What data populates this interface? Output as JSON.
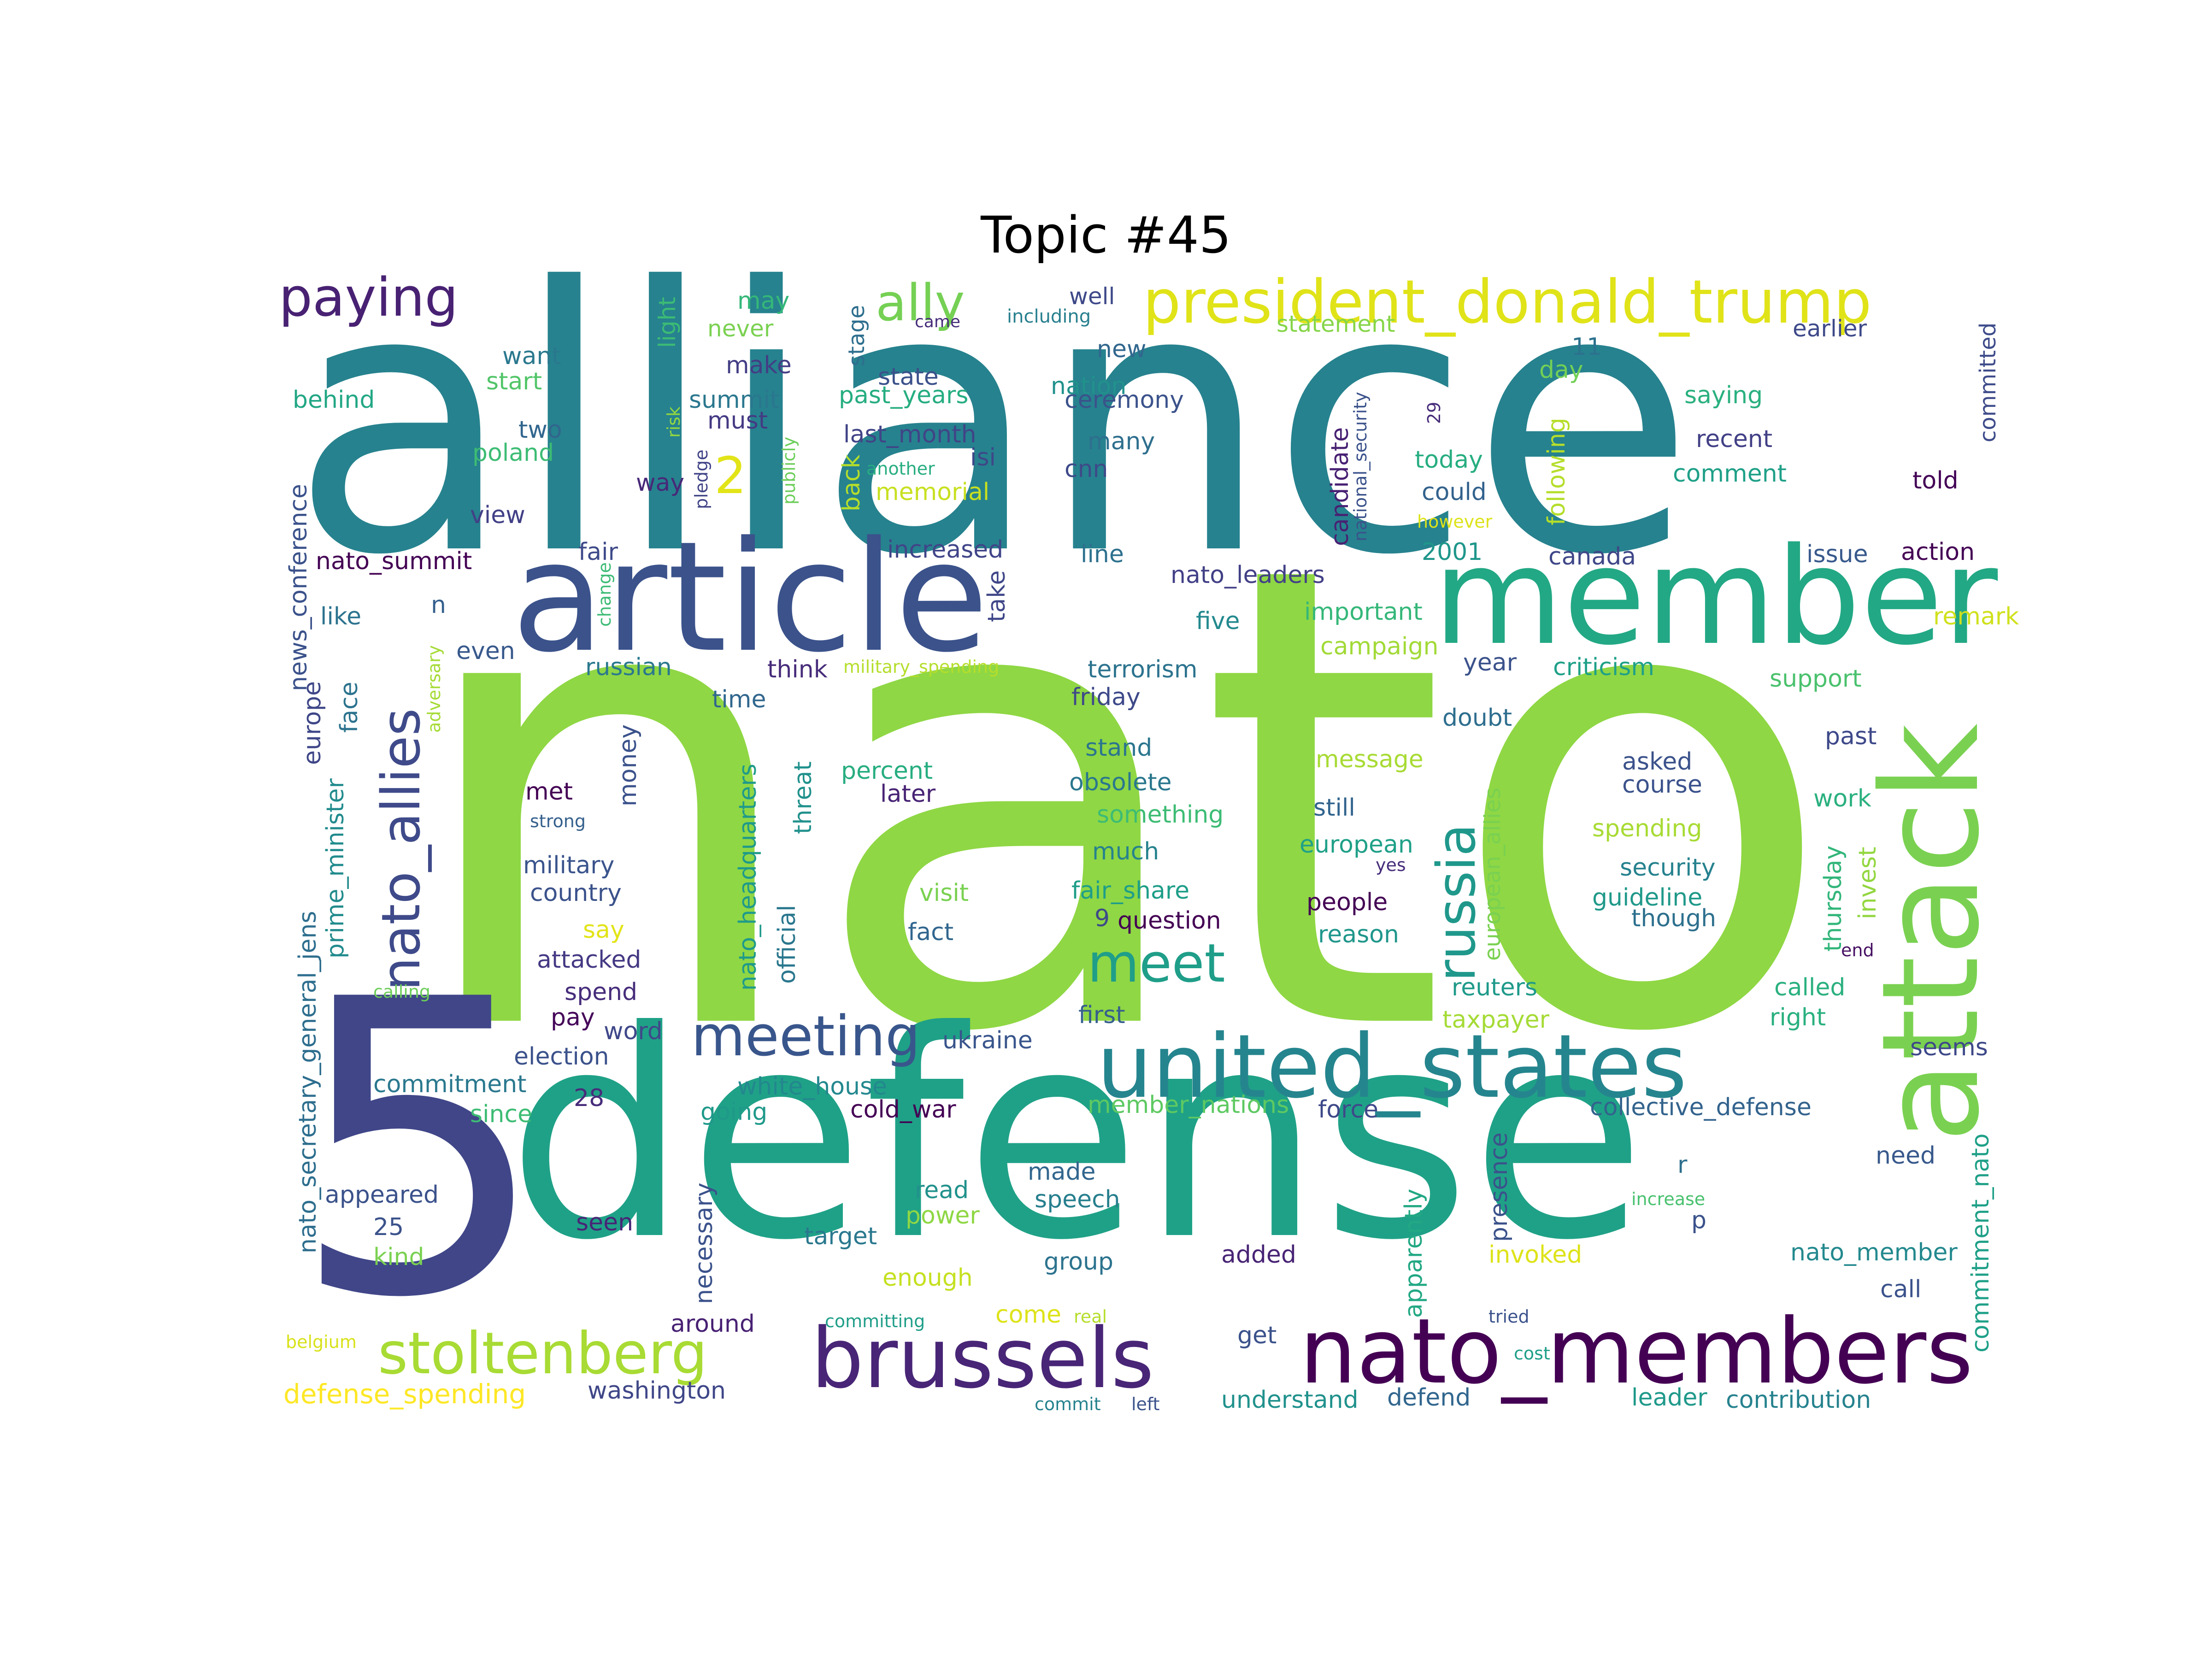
{
  "title": "Topic #45",
  "words": [
    {
      "text": "nato",
      "color": "#8fd744"
    },
    {
      "text": "alliance",
      "color": "#26828e"
    },
    {
      "text": "defense",
      "color": "#1fa187"
    },
    {
      "text": "5",
      "color": "#404688"
    },
    {
      "text": "article",
      "color": "#3b528b"
    },
    {
      "text": "member",
      "color": "#22a884"
    },
    {
      "text": "attack",
      "color": "#7ad151"
    },
    {
      "text": "united_states",
      "color": "#25858e"
    },
    {
      "text": "nato_members",
      "color": "#440154"
    },
    {
      "text": "brussels",
      "color": "#482576"
    },
    {
      "text": "president_donald_trump",
      "color": "#e0e318"
    },
    {
      "text": "stoltenberg",
      "color": "#a8db34"
    },
    {
      "text": "meeting",
      "color": "#39568c"
    },
    {
      "text": "nato_allies",
      "color": "#3e4a89"
    },
    {
      "text": "russia",
      "color": "#1f988b"
    },
    {
      "text": "meet",
      "color": "#1f9e89"
    },
    {
      "text": "paying",
      "color": "#482173"
    },
    {
      "text": "ally",
      "color": "#75d054"
    },
    {
      "text": "2",
      "color": "#e2e418"
    },
    {
      "text": "may",
      "color": "#35b779"
    },
    {
      "text": "well",
      "color": "#3e4989"
    },
    {
      "text": "never",
      "color": "#7ad151"
    },
    {
      "text": "stage",
      "color": "#2e6e8e"
    },
    {
      "text": "light",
      "color": "#3cbb75"
    },
    {
      "text": "came",
      "color": "#472c7a"
    },
    {
      "text": "including",
      "color": "#277f8e"
    },
    {
      "text": "statement",
      "color": "#86d549"
    },
    {
      "text": "earlier",
      "color": "#3e4989"
    },
    {
      "text": "committed",
      "color": "#3e4c8a"
    },
    {
      "text": "want",
      "color": "#2a788e"
    },
    {
      "text": "make",
      "color": "#433e85"
    },
    {
      "text": "new",
      "color": "#31678e"
    },
    {
      "text": "11",
      "color": "#2c728e"
    },
    {
      "text": "start",
      "color": "#52c569"
    },
    {
      "text": "summit",
      "color": "#2a778e"
    },
    {
      "text": "state",
      "color": "#3b518b"
    },
    {
      "text": "nation",
      "color": "#21918c"
    },
    {
      "text": "day",
      "color": "#73d056"
    },
    {
      "text": "saying",
      "color": "#2ab07f"
    },
    {
      "text": "behind",
      "color": "#22a785"
    },
    {
      "text": "past_years",
      "color": "#26ad81"
    },
    {
      "text": "ceremony",
      "color": "#3b528b"
    },
    {
      "text": "two",
      "color": "#31668e"
    },
    {
      "text": "must",
      "color": "#443a83"
    },
    {
      "text": "last_month",
      "color": "#414487"
    },
    {
      "text": "many",
      "color": "#2e6f8e"
    },
    {
      "text": "recent",
      "color": "#424086"
    },
    {
      "text": "poland",
      "color": "#3dbc74"
    },
    {
      "text": "isi",
      "color": "#3f4788"
    },
    {
      "text": "cnn",
      "color": "#3e4a89"
    },
    {
      "text": "today",
      "color": "#27ad81"
    },
    {
      "text": "comment",
      "color": "#1fa088"
    },
    {
      "text": "told",
      "color": "#440256"
    },
    {
      "text": "way",
      "color": "#482878"
    },
    {
      "text": "memorial",
      "color": "#c8e020"
    },
    {
      "text": "could",
      "color": "#33628d"
    },
    {
      "text": "view",
      "color": "#424086"
    },
    {
      "text": "nato_summit",
      "color": "#440154"
    },
    {
      "text": "fair",
      "color": "#3e4a89"
    },
    {
      "text": "increased",
      "color": "#404588"
    },
    {
      "text": "line",
      "color": "#2d718e"
    },
    {
      "text": "2001",
      "color": "#1f968b"
    },
    {
      "text": "canada",
      "color": "#3f4788"
    },
    {
      "text": "issue",
      "color": "#38598c"
    },
    {
      "text": "action",
      "color": "#440154"
    },
    {
      "text": "nato_leaders",
      "color": "#424086"
    },
    {
      "text": "like",
      "color": "#2c738e"
    },
    {
      "text": "n",
      "color": "#355f8d"
    },
    {
      "text": "five",
      "color": "#23898e"
    },
    {
      "text": "important",
      "color": "#35b779"
    },
    {
      "text": "remark",
      "color": "#d0e11c"
    },
    {
      "text": "even",
      "color": "#38598c"
    },
    {
      "text": "russian",
      "color": "#2a788e"
    },
    {
      "text": "campaign",
      "color": "#a2da37"
    },
    {
      "text": "year",
      "color": "#3b528b"
    },
    {
      "text": "criticism",
      "color": "#1fa088"
    },
    {
      "text": "support",
      "color": "#4ac16d"
    },
    {
      "text": "think",
      "color": "#472c7a"
    },
    {
      "text": "military_spending",
      "color": "#b5de2b"
    },
    {
      "text": "terrorism",
      "color": "#2c738e"
    },
    {
      "text": "time",
      "color": "#31678e"
    },
    {
      "text": "friday",
      "color": "#3e4989"
    },
    {
      "text": "doubt",
      "color": "#2e6e8e"
    },
    {
      "text": "past",
      "color": "#3e4989"
    },
    {
      "text": "stand",
      "color": "#2b758e"
    },
    {
      "text": "obsolete",
      "color": "#2a778e"
    },
    {
      "text": "message",
      "color": "#a8db34"
    },
    {
      "text": "asked",
      "color": "#3b528b"
    },
    {
      "text": "course",
      "color": "#3b528b"
    },
    {
      "text": "percent",
      "color": "#27ad81"
    },
    {
      "text": "later",
      "color": "#482475"
    },
    {
      "text": "something",
      "color": "#3dbc74"
    },
    {
      "text": "still",
      "color": "#32648e"
    },
    {
      "text": "spending",
      "color": "#a8db34"
    },
    {
      "text": "work",
      "color": "#2ab07f"
    },
    {
      "text": "met",
      "color": "#440154"
    },
    {
      "text": "strong",
      "color": "#34608d"
    },
    {
      "text": "much",
      "color": "#26828e"
    },
    {
      "text": "european",
      "color": "#1fa088"
    },
    {
      "text": "yes",
      "color": "#472d7b"
    },
    {
      "text": "security",
      "color": "#26828e"
    },
    {
      "text": "thursday",
      "color": "#32b67a"
    },
    {
      "text": "military",
      "color": "#3a548c"
    },
    {
      "text": "country",
      "color": "#3b528b"
    },
    {
      "text": "visit",
      "color": "#7ad151"
    },
    {
      "text": "fair_share",
      "color": "#1f9e89"
    },
    {
      "text": "people",
      "color": "#440154"
    },
    {
      "text": "guideline",
      "color": "#1f998a"
    },
    {
      "text": "invest",
      "color": "#93d741"
    },
    {
      "text": "say",
      "color": "#e2e418"
    },
    {
      "text": "fact",
      "color": "#31668e"
    },
    {
      "text": "9",
      "color": "#3e4a89"
    },
    {
      "text": "question",
      "color": "#440154"
    },
    {
      "text": "reason",
      "color": "#1f968b"
    },
    {
      "text": "though",
      "color": "#2d708e"
    },
    {
      "text": "end",
      "color": "#471063"
    },
    {
      "text": "attacked",
      "color": "#443983"
    },
    {
      "text": "calling",
      "color": "#6ccd5a"
    },
    {
      "text": "spend",
      "color": "#472d7b"
    },
    {
      "text": "reuters",
      "color": "#1f9a8a"
    },
    {
      "text": "called",
      "color": "#2ab07f"
    },
    {
      "text": "first",
      "color": "#355f8d"
    },
    {
      "text": "pay",
      "color": "#450559"
    },
    {
      "text": "taxpayer",
      "color": "#a5db36"
    },
    {
      "text": "right",
      "color": "#2ab07f"
    },
    {
      "text": "word",
      "color": "#3f4889"
    },
    {
      "text": "ukraine",
      "color": "#39558c"
    },
    {
      "text": "seems",
      "color": "#3e4989"
    },
    {
      "text": "election",
      "color": "#3b528b"
    },
    {
      "text": "commitment",
      "color": "#2a788e"
    },
    {
      "text": "white_house",
      "color": "#23888e"
    },
    {
      "text": "28",
      "color": "#472c7a"
    },
    {
      "text": "cold_war",
      "color": "#440154"
    },
    {
      "text": "member_nations",
      "color": "#5ec962"
    },
    {
      "text": "force",
      "color": "#3e4989"
    },
    {
      "text": "collective_defense",
      "color": "#33638d"
    },
    {
      "text": "since",
      "color": "#3dbc74"
    },
    {
      "text": "going",
      "color": "#1f998a"
    },
    {
      "text": "need",
      "color": "#38598c"
    },
    {
      "text": "made",
      "color": "#31668e"
    },
    {
      "text": "r",
      "color": "#2e6f8e"
    },
    {
      "text": "appeared",
      "color": "#3b528b"
    },
    {
      "text": "read",
      "color": "#21918c"
    },
    {
      "text": "speech",
      "color": "#277f8e"
    },
    {
      "text": "increase",
      "color": "#48c16e"
    },
    {
      "text": "25",
      "color": "#3b528b"
    },
    {
      "text": "seen",
      "color": "#482576"
    },
    {
      "text": "power",
      "color": "#8fd744"
    },
    {
      "text": "p",
      "color": "#3b528b"
    },
    {
      "text": "target",
      "color": "#2a788e"
    },
    {
      "text": "added",
      "color": "#482475"
    },
    {
      "text": "invoked",
      "color": "#dde318"
    },
    {
      "text": "nato_member",
      "color": "#23898e"
    },
    {
      "text": "kind",
      "color": "#7ad151"
    },
    {
      "text": "enough",
      "color": "#c5e021"
    },
    {
      "text": "group",
      "color": "#2c738e"
    },
    {
      "text": "call",
      "color": "#3b528b"
    },
    {
      "text": "come",
      "color": "#dde318"
    },
    {
      "text": "around",
      "color": "#482173"
    },
    {
      "text": "committing",
      "color": "#1f9e89"
    },
    {
      "text": "real",
      "color": "#b5de2b"
    },
    {
      "text": "tried",
      "color": "#3b528b"
    },
    {
      "text": "get",
      "color": "#3b528b"
    },
    {
      "text": "belgium",
      "color": "#d8e219"
    },
    {
      "text": "cost",
      "color": "#1f9e89"
    },
    {
      "text": "defense_spending",
      "color": "#fde725"
    },
    {
      "text": "washington",
      "color": "#3f4788"
    },
    {
      "text": "understand",
      "color": "#21918c"
    },
    {
      "text": "defend",
      "color": "#31668e"
    },
    {
      "text": "leader",
      "color": "#1f998a"
    },
    {
      "text": "contribution",
      "color": "#26828e"
    },
    {
      "text": "commit",
      "color": "#26828e"
    },
    {
      "text": "left",
      "color": "#3b528b"
    },
    {
      "text": "news_conference",
      "color": "#3b528b"
    },
    {
      "text": "europe",
      "color": "#3f4788"
    },
    {
      "text": "adversary",
      "color": "#a5db36"
    },
    {
      "text": "face",
      "color": "#2c738e"
    },
    {
      "text": "prime_minister",
      "color": "#228b8d"
    },
    {
      "text": "nato_secretary_general_jens",
      "color": "#2e6e8e"
    },
    {
      "text": "nato_headquarters",
      "color": "#1f9a8a"
    },
    {
      "text": "official",
      "color": "#2a778e"
    },
    {
      "text": "threat",
      "color": "#21918c"
    },
    {
      "text": "money",
      "color": "#3b528b"
    },
    {
      "text": "necessary",
      "color": "#3b528b"
    },
    {
      "text": "take",
      "color": "#3f4788"
    },
    {
      "text": "change",
      "color": "#3cbb75"
    },
    {
      "text": "risk",
      "color": "#93d741"
    },
    {
      "text": "pledge",
      "color": "#414487"
    },
    {
      "text": "publicly",
      "color": "#6ccd5a"
    },
    {
      "text": "back",
      "color": "#b5de2b"
    },
    {
      "text": "another",
      "color": "#27ad81"
    },
    {
      "text": "candidate",
      "color": "#482173"
    },
    {
      "text": "national_security",
      "color": "#3b528b"
    },
    {
      "text": "however",
      "color": "#dde318"
    },
    {
      "text": "29",
      "color": "#472c7a"
    },
    {
      "text": "following",
      "color": "#b5de2b"
    },
    {
      "text": "european_allies",
      "color": "#7ad151"
    },
    {
      "text": "presence",
      "color": "#3b528b"
    },
    {
      "text": "apparently",
      "color": "#22a884"
    },
    {
      "text": "commitment_nato",
      "color": "#1fa088"
    }
  ]
}
